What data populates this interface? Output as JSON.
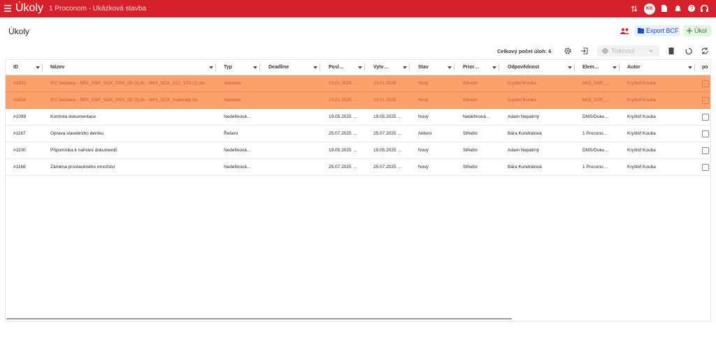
{
  "header": {
    "title": "Úkoly",
    "project": "1 Proconom - Ukázková stavba",
    "avatar": "KK"
  },
  "page": {
    "title": "Úkoly",
    "export_button": "Export BCF",
    "new_button": "Úkol",
    "total": "Celkový počet úloh: 6",
    "print_button": "Tisknout"
  },
  "table": {
    "columns": [
      "ID",
      "Název",
      "Typ",
      "Deadline",
      "Posl…",
      "Vytv…",
      "Stav",
      "Prior…",
      "Odpovědnost",
      "Elem…",
      "Autor",
      "po"
    ],
    "rows": [
      {
        "selected": true,
        "cells": [
          "#1633",
          "IFC Validace - M02_DSP_SOX_DSS_05 (2).ifc - M03_SOX_CCI_STA (2).ids",
          "Validace",
          null,
          "23.01.2026 …",
          "23.01.2026 …",
          "Nový",
          "Střední",
          "Kryštof Kouba",
          "M02_DSP_…",
          "Kryštof Kouba"
        ]
      },
      {
        "selected": true,
        "cells": [
          "#1634",
          "IFC Validace - M02_DSP_SOX_DSS_05 (2).ifc - M03_SOX_materialy.ids",
          "Validace",
          null,
          "23.01.2026 …",
          "23.01.2026 …",
          "Nový",
          "Střední",
          "Kryštof Kouba",
          "M02_DSP_…",
          "Kryštof Kouba"
        ]
      },
      {
        "selected": false,
        "cells": [
          "#1099",
          "Kontrola dokumentace",
          "Nedefinová…",
          null,
          "19.05.2025 …",
          "19.05.2025 …",
          "Nový",
          "Nedefinová…",
          "Adam Nepatrný",
          "DMS/Doku…",
          "Kryštof Kouba"
        ]
      },
      {
        "selected": false,
        "cells": [
          "#1167",
          "Oprava stavebního deníku",
          "Řešení",
          null,
          "25.07.2025 …",
          "25.07.2025 …",
          "Aktivní",
          "Střední",
          "Bára Kundrátová",
          "1 Procono…",
          "Kryštof Kouba"
        ]
      },
      {
        "selected": false,
        "cells": [
          "#1100",
          "Připomínka k nahrání dokumentů",
          "Nedefinová…",
          null,
          "19.05.2025 …",
          "19.05.2025 …",
          "Nový",
          "Střední",
          "Adam Nepatrný",
          "DMS/Doku…",
          "Kryštof Kouba"
        ]
      },
      {
        "selected": false,
        "cells": [
          "#1168",
          "Záměna prostavěného množství",
          "Nedefinová…",
          null,
          "25.07.2025 …",
          "25.07.2025 …",
          "Nový",
          "Střední",
          "Bára Kundrátová",
          "1 Procono…",
          "Kryštof Kouba"
        ]
      }
    ]
  }
}
